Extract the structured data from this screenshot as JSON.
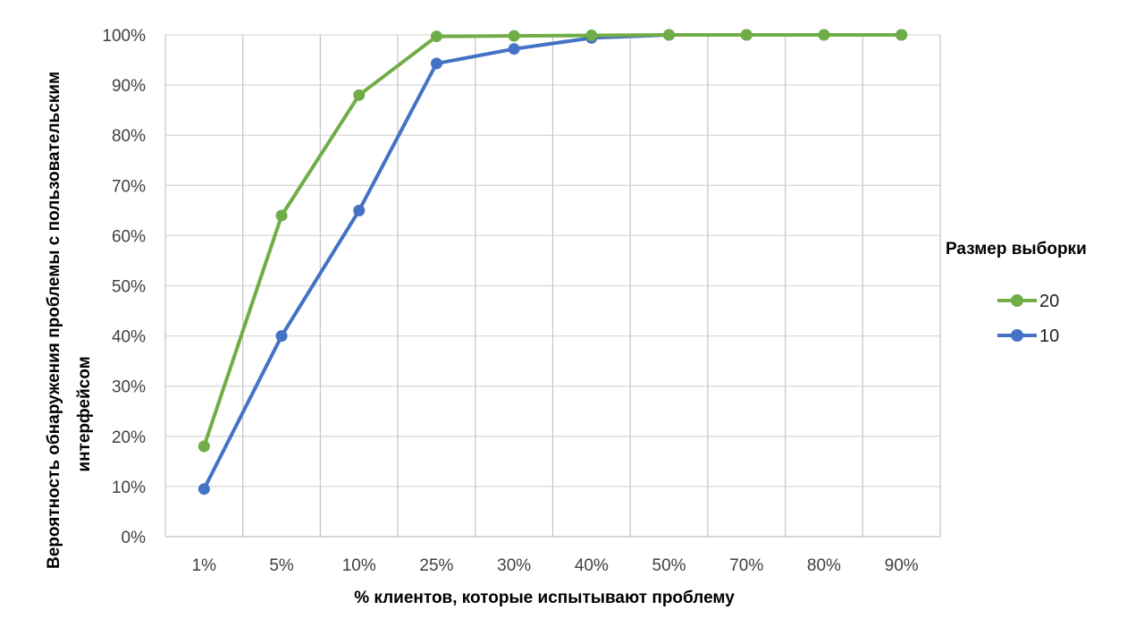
{
  "chart_data": {
    "type": "line",
    "categories": [
      "1%",
      "5%",
      "10%",
      "25%",
      "30%",
      "40%",
      "50%",
      "70%",
      "80%",
      "90%"
    ],
    "series": [
      {
        "name": "20",
        "color": "#70ad47",
        "values": [
          18,
          64,
          88,
          99.7,
          99.8,
          99.9,
          100,
          100,
          100,
          100
        ]
      },
      {
        "name": "10",
        "color": "#4472c4",
        "values": [
          9.5,
          40,
          65,
          94.3,
          97.2,
          99.4,
          100,
          100,
          100,
          100
        ]
      }
    ],
    "xlabel": "% клиентов, которые испытывают проблему",
    "ylabel_line1": "Вероятность обнаружения проблемы с пользовательским",
    "ylabel_line2": "интерфейсом",
    "yticks": [
      "0%",
      "10%",
      "20%",
      "30%",
      "40%",
      "50%",
      "60%",
      "70%",
      "80%",
      "90%",
      "100%"
    ],
    "ylim": [
      0,
      100
    ],
    "grid": true,
    "legend": {
      "title": "Размер выборки",
      "placement": "right"
    }
  }
}
